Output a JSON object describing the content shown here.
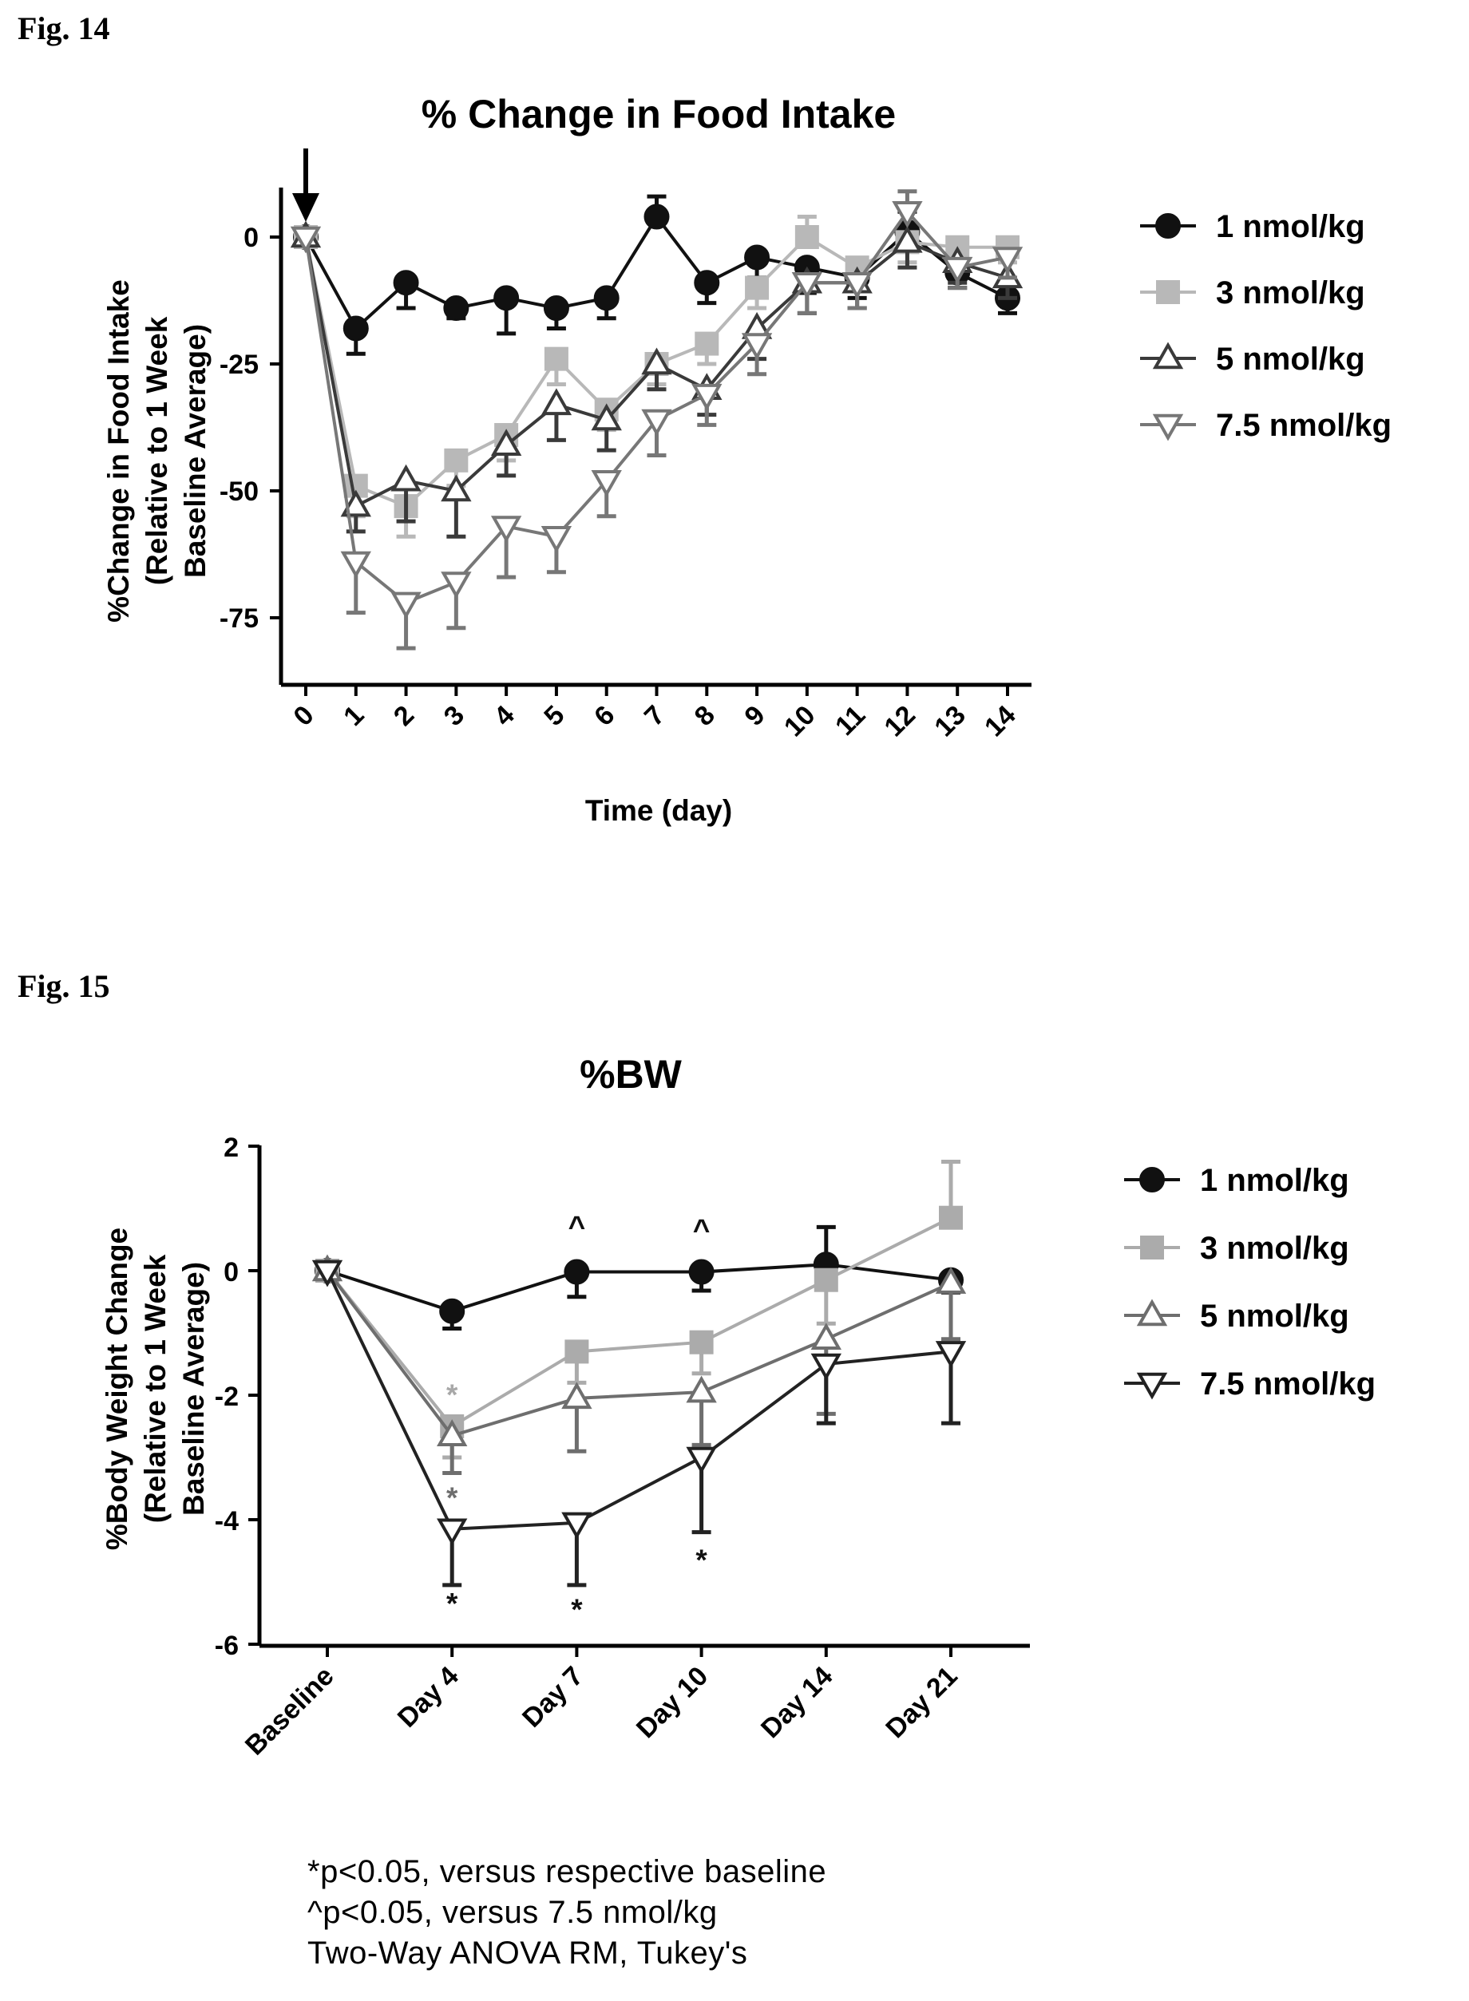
{
  "fig14": {
    "label": "Fig. 14",
    "chart_data": {
      "type": "line",
      "title": "% Change in Food Intake",
      "xlabel": "Time (day)",
      "ylabel_lines": [
        "%Change in Food Intake",
        "(Relative to 1 Week",
        "Baseline Average)"
      ],
      "x": [
        0,
        1,
        2,
        3,
        4,
        5,
        6,
        7,
        8,
        9,
        10,
        11,
        12,
        13,
        14
      ],
      "x_ticks": [
        "0",
        "1",
        "2",
        "3",
        "4",
        "5",
        "6",
        "7",
        "8",
        "9",
        "10",
        "11",
        "12",
        "13",
        "14"
      ],
      "y_ticks": [
        0,
        -25,
        -50,
        -75
      ],
      "y_tick_labels": [
        "0",
        "-25",
        "-50",
        "-75"
      ],
      "xlim": [
        -0.5,
        14.5
      ],
      "ylim": [
        -90,
        10
      ],
      "arrow_at_x": 0,
      "legend_position": "right",
      "series": [
        {
          "name": "1 nmol/kg",
          "marker": "circle",
          "color": "#111111",
          "values": [
            0,
            -18,
            -9,
            -14,
            -12,
            -14,
            -12,
            4,
            -9,
            -4,
            -6,
            -8,
            1,
            -7,
            -12
          ],
          "errors": [
            0,
            5,
            5,
            2,
            7,
            4,
            4,
            4,
            4,
            4,
            5,
            4,
            4,
            3,
            3
          ]
        },
        {
          "name": "3 nmol/kg",
          "marker": "square",
          "color": "#b8b8b8",
          "values": [
            0,
            -49,
            -53,
            -44,
            -39,
            -24,
            -34,
            -25,
            -21,
            -10,
            0,
            -6,
            -1,
            -2,
            -2
          ],
          "errors": [
            0,
            6,
            6,
            5,
            5,
            5,
            4,
            4,
            4,
            4,
            4,
            4,
            4,
            4,
            3
          ]
        },
        {
          "name": "5 nmol/kg",
          "marker": "triangle-up",
          "color": "#3a3a3a",
          "values": [
            0,
            -53,
            -48,
            -50,
            -41,
            -33,
            -36,
            -25,
            -30,
            -18,
            -9,
            -9,
            -1,
            -5,
            -8
          ],
          "errors": [
            0,
            5,
            8,
            9,
            6,
            7,
            6,
            5,
            5,
            6,
            6,
            5,
            5,
            4,
            4
          ]
        },
        {
          "name": "7.5 nmol/kg",
          "marker": "triangle-down",
          "color": "#777777",
          "values": [
            0,
            -64,
            -72,
            -68,
            -57,
            -59,
            -48,
            -36,
            -31,
            -21,
            -9,
            -9,
            5,
            -6,
            -4
          ],
          "errors": [
            0,
            10,
            9,
            9,
            10,
            7,
            7,
            7,
            6,
            6,
            6,
            5,
            4,
            4,
            4
          ]
        }
      ]
    }
  },
  "fig15": {
    "label": "Fig. 15",
    "chart_data": {
      "type": "line",
      "title": "%BW",
      "ylabel_lines": [
        "%Body Weight Change",
        "(Relative to 1 Week",
        "Baseline Average)"
      ],
      "categories": [
        "Baseline",
        "Day 4",
        "Day 7",
        "Day 10",
        "Day 14",
        "Day 21"
      ],
      "y_ticks": [
        2,
        0,
        -2,
        -4,
        -6
      ],
      "y_tick_labels": [
        "2",
        "0",
        "-2",
        "-4",
        "-6"
      ],
      "ylim": [
        -6,
        2
      ],
      "legend_position": "right",
      "series": [
        {
          "name": "1 nmol/kg",
          "marker": "circle",
          "color": "#111111",
          "values": [
            0,
            -0.65,
            -0.02,
            -0.02,
            0.1,
            -0.15
          ],
          "errors": [
            0,
            0.28,
            0.4,
            0.3,
            0.6,
            0.2
          ]
        },
        {
          "name": "3 nmol/kg",
          "marker": "square",
          "color": "#ababab",
          "values": [
            0,
            -2.5,
            -1.3,
            -1.15,
            -0.15,
            0.85
          ],
          "errors": [
            0,
            0.5,
            0.5,
            0.5,
            0.7,
            0.9
          ]
        },
        {
          "name": "5 nmol/kg",
          "marker": "triangle-up",
          "color": "#6e6e6e",
          "values": [
            0,
            -2.65,
            -2.05,
            -1.95,
            -1.1,
            -0.2
          ],
          "errors": [
            0,
            0.6,
            0.85,
            0.85,
            1.2,
            0.9
          ]
        },
        {
          "name": "7.5 nmol/kg",
          "marker": "triangle-down",
          "color": "#222222",
          "values": [
            0,
            -4.15,
            -4.05,
            -3.0,
            -1.5,
            -1.3
          ],
          "errors": [
            0,
            0.9,
            1.0,
            1.2,
            0.95,
            1.15
          ]
        }
      ],
      "annotations": [
        {
          "text": "^",
          "category_index": 2,
          "y": 0.75,
          "color": "#111111"
        },
        {
          "text": "^",
          "category_index": 3,
          "y": 0.7,
          "color": "#111111"
        },
        {
          "text": "*",
          "category_index": 1,
          "y": -1.95,
          "color": "#a8a8a8"
        },
        {
          "text": "*",
          "category_index": 1,
          "y": -3.6,
          "color": "#6e6e6e"
        },
        {
          "text": "*",
          "category_index": 1,
          "y": -5.3,
          "color": "#111111"
        },
        {
          "text": "*",
          "category_index": 2,
          "y": -5.4,
          "color": "#111111"
        },
        {
          "text": "*",
          "category_index": 3,
          "y": -4.6,
          "color": "#111111"
        }
      ]
    },
    "footnotes": [
      "*p<0.05, versus respective baseline",
      "^p<0.05, versus 7.5 nmol/kg",
      "Two-Way ANOVA RM, Tukey's"
    ]
  }
}
